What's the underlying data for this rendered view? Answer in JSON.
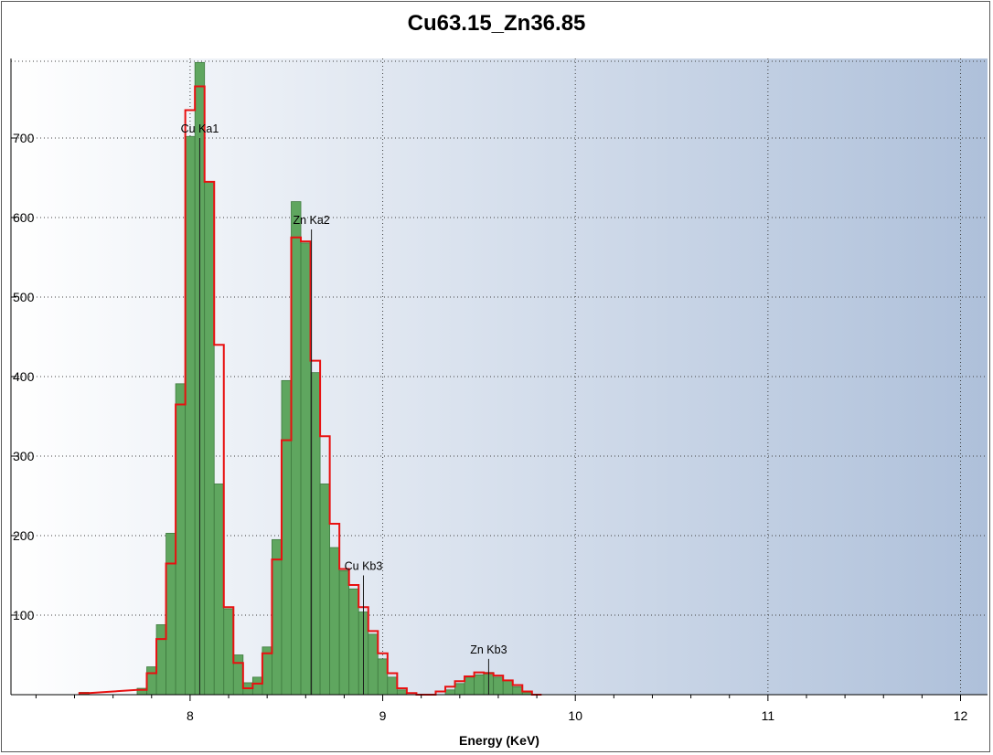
{
  "chart_data": {
    "type": "bar",
    "title": "Cu63.15_Zn36.85",
    "xlabel": "Energy (KeV)",
    "ylabel": "",
    "xlim": [
      7.07,
      12.14
    ],
    "ylim": [
      0,
      800
    ],
    "x_ticks": [
      "8",
      "9",
      "10",
      "11",
      "12"
    ],
    "y_ticks": [
      "100",
      "200",
      "300",
      "400",
      "500",
      "600",
      "700"
    ],
    "grid": true,
    "bin_width": 0.05,
    "series": [
      {
        "kind": "histogram-fill",
        "color": "#5fa65f",
        "x": [
          7.45,
          7.75,
          7.8,
          7.85,
          7.9,
          7.95,
          8.0,
          8.05,
          8.1,
          8.15,
          8.2,
          8.25,
          8.3,
          8.35,
          8.4,
          8.45,
          8.5,
          8.55,
          8.6,
          8.65,
          8.7,
          8.75,
          8.8,
          8.85,
          8.9,
          8.95,
          9.0,
          9.05,
          9.1,
          9.15,
          9.2,
          9.25,
          9.3,
          9.35,
          9.4,
          9.45,
          9.5,
          9.55,
          9.6,
          9.65,
          9.7,
          9.75,
          9.8
        ],
        "values": [
          3,
          8,
          35,
          88,
          203,
          391,
          702,
          795,
          645,
          265,
          108,
          50,
          15,
          22,
          60,
          195,
          395,
          620,
          568,
          405,
          265,
          185,
          156,
          133,
          104,
          76,
          45,
          22,
          6,
          0,
          0,
          0,
          0,
          6,
          14,
          22,
          25,
          28,
          22,
          18,
          10,
          3,
          0
        ]
      },
      {
        "kind": "histogram-outline",
        "color": "#e81010",
        "x": [
          7.45,
          7.75,
          7.8,
          7.85,
          7.9,
          7.95,
          8.0,
          8.05,
          8.1,
          8.15,
          8.2,
          8.25,
          8.3,
          8.35,
          8.4,
          8.45,
          8.5,
          8.55,
          8.6,
          8.65,
          8.7,
          8.75,
          8.8,
          8.85,
          8.9,
          8.95,
          9.0,
          9.05,
          9.1,
          9.15,
          9.2,
          9.25,
          9.3,
          9.35,
          9.4,
          9.45,
          9.5,
          9.55,
          9.6,
          9.65,
          9.7,
          9.75,
          9.8
        ],
        "values": [
          2,
          6,
          27,
          70,
          165,
          365,
          735,
          765,
          645,
          440,
          110,
          40,
          8,
          14,
          52,
          170,
          320,
          575,
          570,
          420,
          325,
          215,
          158,
          138,
          110,
          80,
          52,
          27,
          8,
          2,
          0,
          0,
          4,
          10,
          17,
          23,
          28,
          27,
          24,
          18,
          12,
          4,
          0
        ]
      }
    ],
    "annotations": [
      {
        "label": "Cu Ka1",
        "x": 8.05,
        "line_top": 700
      },
      {
        "label": "Zn Ka2",
        "x": 8.63,
        "line_top": 585
      },
      {
        "label": "Cu Kb3",
        "x": 8.9,
        "line_top": 150
      },
      {
        "label": "Zn Kb3",
        "x": 9.55,
        "line_top": 45
      }
    ],
    "colors": {
      "plot_bg_left": "#ffffff",
      "plot_bg_right": "#aec0da",
      "grid": "#404040",
      "annotation_line": "#1a1a1a"
    }
  }
}
